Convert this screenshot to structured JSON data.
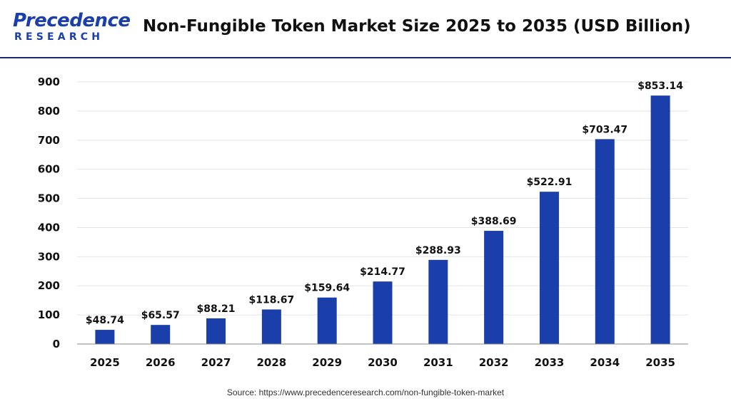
{
  "logo": {
    "top_text": "Precedence",
    "bottom_text": "RESEARCH"
  },
  "page_title": "Non-Fungible Token Market Size 2025 to 2035 (USD Billion)",
  "source_text": "Source: https://www.precedenceresearch.com/non-fungible-token-market",
  "colors": {
    "bar": "#1a3eaa",
    "logo_primary": "#1a3eaa",
    "logo_accent": "#1a3eaa",
    "header_rule": "#1a2a6c",
    "grid": "#e4e4e4",
    "axis": "#888888"
  },
  "chart_data": {
    "type": "bar",
    "title": "Non-Fungible Token Market Size 2025 to 2035 (USD Billion)",
    "categories": [
      "2025",
      "2026",
      "2027",
      "2028",
      "2029",
      "2030",
      "2031",
      "2032",
      "2033",
      "2034",
      "2035"
    ],
    "values": [
      48.74,
      65.57,
      88.21,
      118.67,
      159.64,
      214.77,
      288.93,
      388.69,
      522.91,
      703.47,
      853.14
    ],
    "data_labels": [
      "$48.74",
      "$65.57",
      "$88.21",
      "$118.67",
      "$159.64",
      "$214.77",
      "$288.93",
      "$388.69",
      "$522.91",
      "$703.47",
      "$853.14"
    ],
    "xlabel": "",
    "ylabel": "",
    "ylim": [
      0,
      900
    ],
    "yticks": [
      0,
      100,
      200,
      300,
      400,
      500,
      600,
      700,
      800,
      900
    ],
    "grid": true,
    "legend": "none"
  }
}
